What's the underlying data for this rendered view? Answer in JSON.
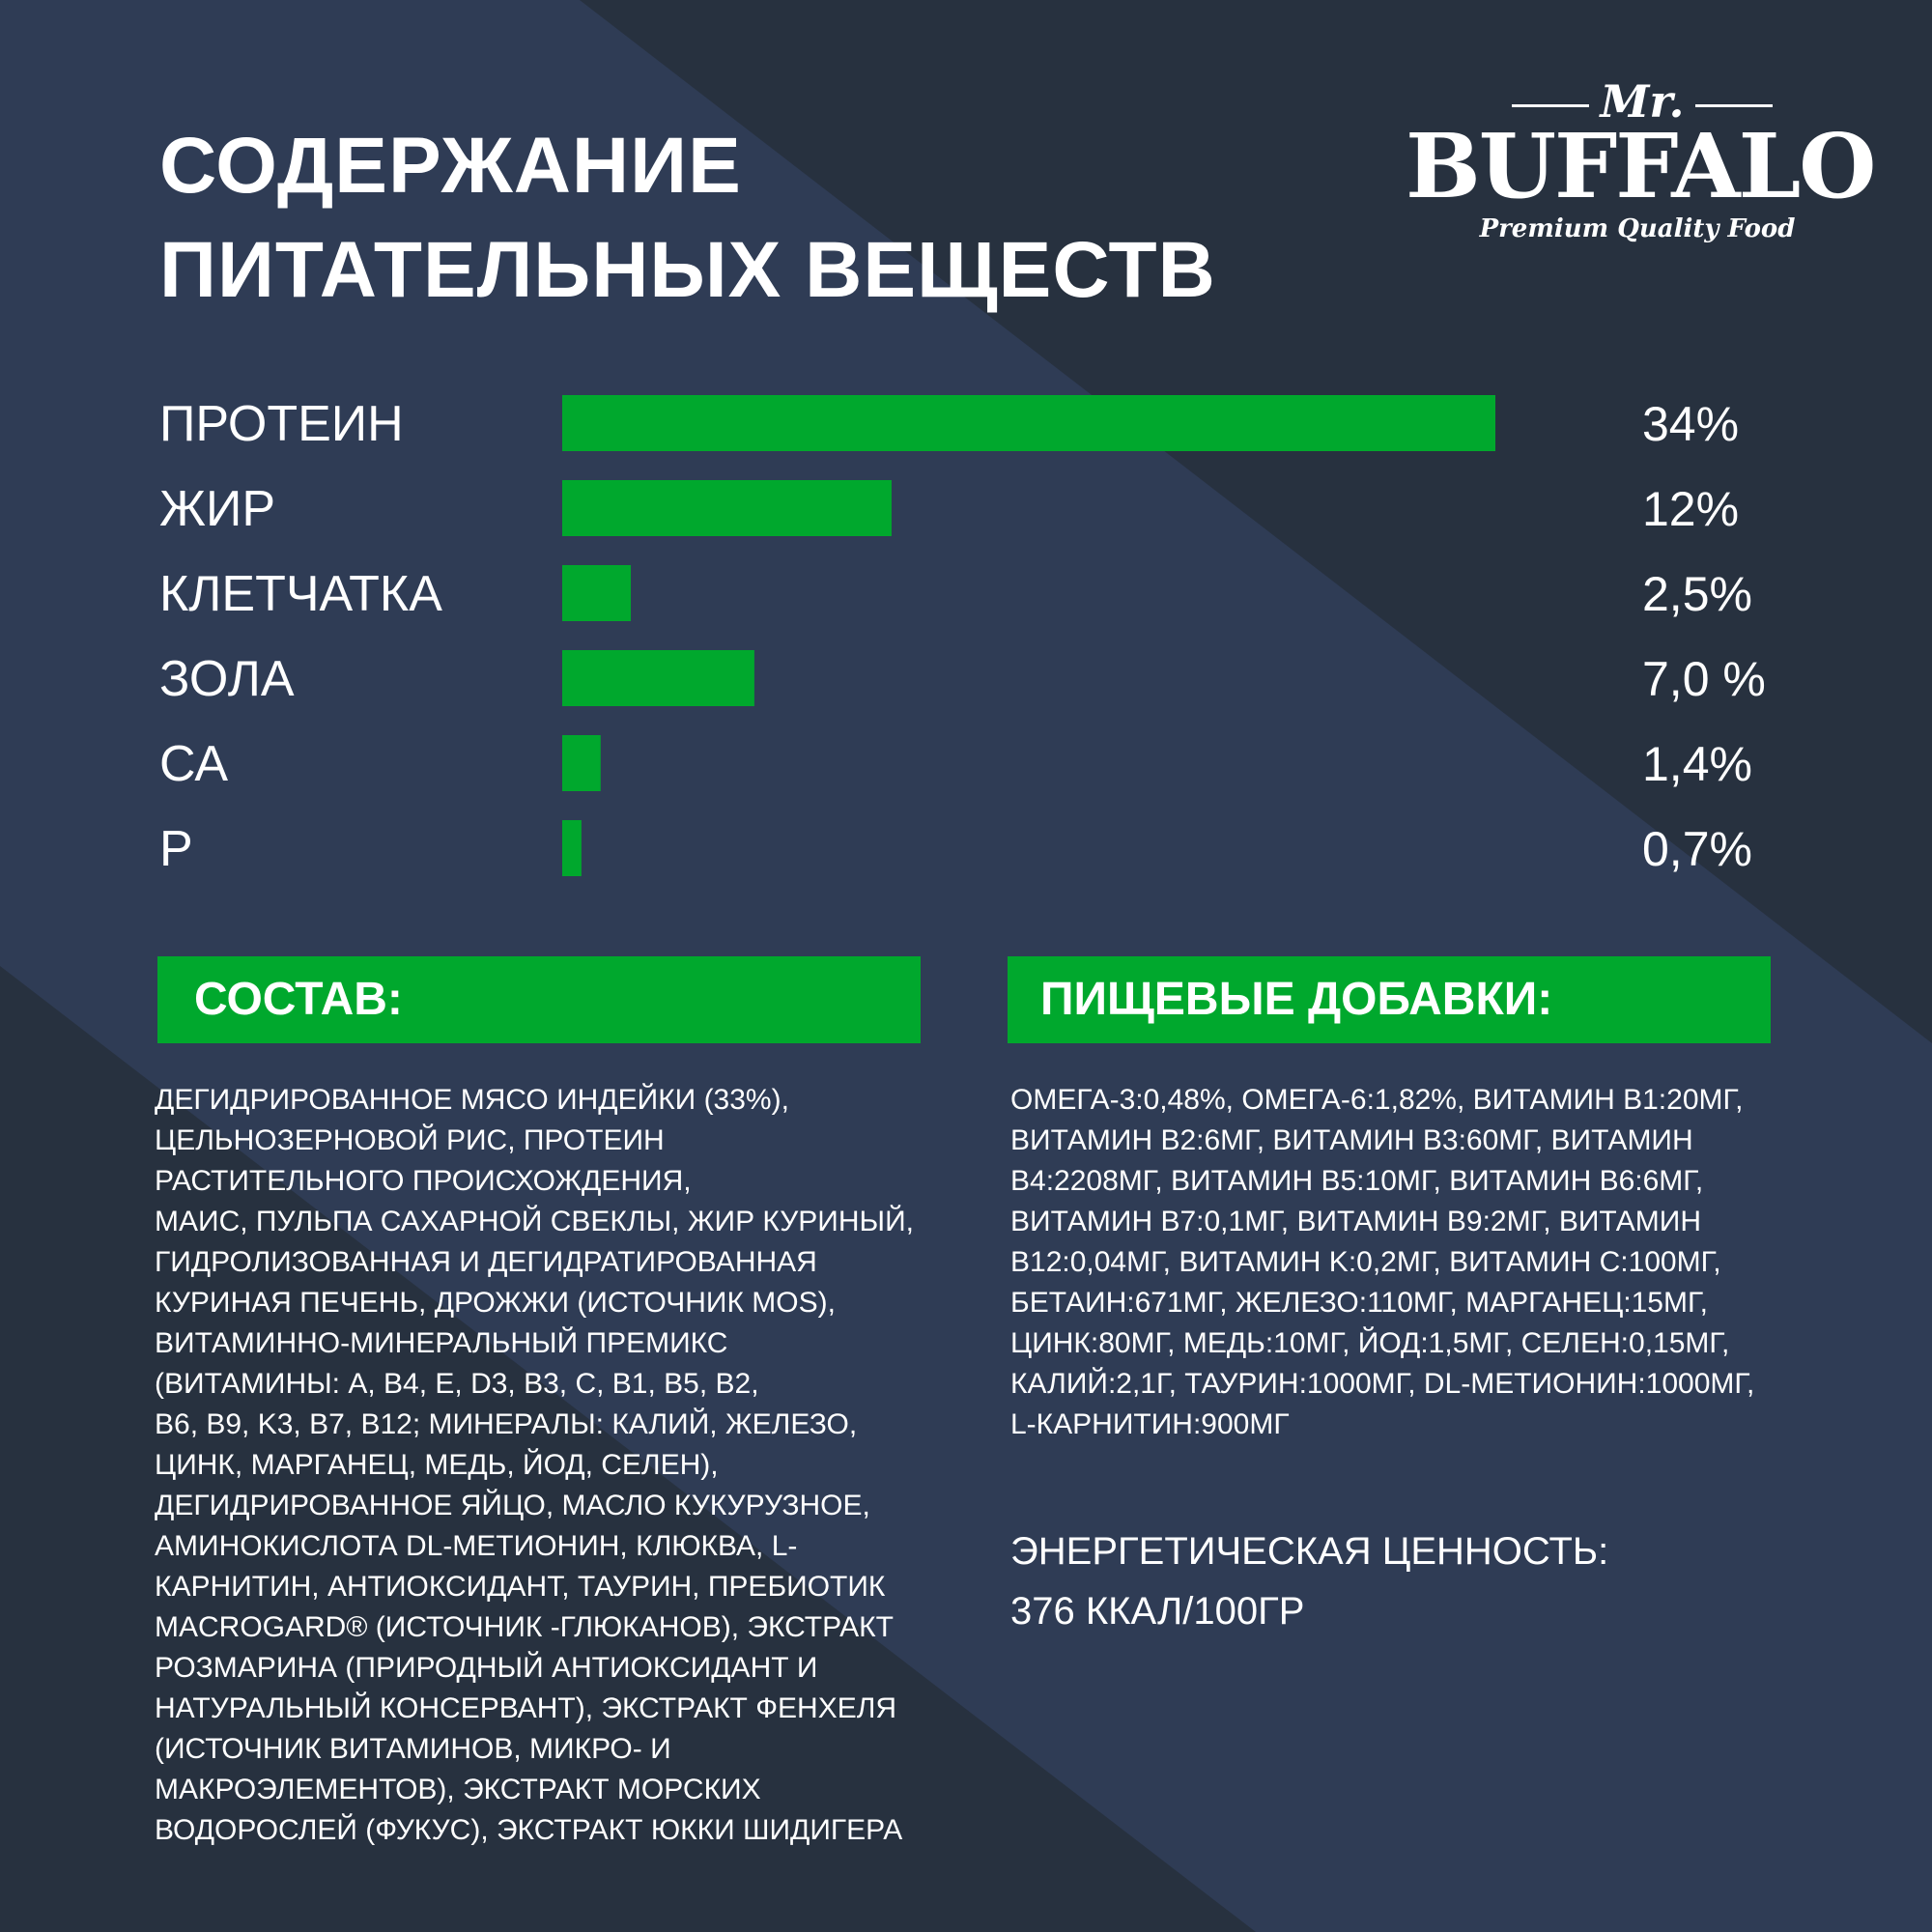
{
  "colors": {
    "background_dark": "#27313f",
    "background_light": "#2f3c55",
    "accent_green": "#00a82d",
    "text": "#ffffff"
  },
  "title": {
    "line1": "СОДЕРЖАНИЕ",
    "line2": "ПИТАТЕЛЬНЫХ ВЕЩЕСТВ"
  },
  "logo": {
    "mr": "Mr.",
    "brand": "BUFFALO",
    "tagline": "Premium Quality Food"
  },
  "chart_data": {
    "type": "bar",
    "orientation": "horizontal",
    "title": "",
    "xlabel": "",
    "ylabel": "",
    "categories": [
      "ПРОТЕИН",
      "ЖИР",
      "КЛЕТЧАТКА",
      "ЗОЛА",
      "СА",
      "Р"
    ],
    "values": [
      34,
      12,
      2.5,
      7.0,
      1.4,
      0.7
    ],
    "value_labels": [
      "34%",
      "12%",
      "2,5%",
      "7,0 %",
      "1,4%",
      "0,7%"
    ],
    "bar_color": "#00a82d",
    "grid": false,
    "legend": "none"
  },
  "composition": {
    "heading": "СОСТАВ:",
    "text": "ДЕГИДРИРОВАННОЕ МЯСО ИНДЕЙКИ (33%),\nЦЕЛЬНОЗЕРНОВОЙ РИС, ПРОТЕИН\nРАСТИТЕЛЬНОГО ПРОИСХОЖДЕНИЯ,\nМАИС, ПУЛЬПА САХАРНОЙ СВЕКЛЫ, ЖИР КУРИНЫЙ,\nГИДРОЛИЗОВАННАЯ И ДЕГИДРАТИРОВАННАЯ\nКУРИНАЯ ПЕЧЕНЬ, ДРОЖЖИ (ИСТОЧНИК MOS),\nВИТАМИННО-МИНЕРАЛЬНЫЙ ПРЕМИКС\n(ВИТАМИНЫ: A, B4, E, D3, B3, C, B1, B5, B2,\nB6, B9, K3, B7, B12; МИНЕРАЛЫ: КАЛИЙ, ЖЕЛЕЗО,\nЦИНК, МАРГАНЕЦ, МЕДЬ, ЙОД, СЕЛЕН),\nДЕГИДРИРОВАННОЕ ЯЙЦО, МАСЛО КУКУРУЗНОЕ,\nАМИНОКИСЛОТА DL-МЕТИОНИН, КЛЮКВА, L-\nКАРНИТИН, АНТИОКСИДАНТ, ТАУРИН, ПРЕБИОТИК\nMACROGARD® (ИСТОЧНИК  -ГЛЮКАНОВ), ЭКСТРАКТ\nРОЗМАРИНА (ПРИРОДНЫЙ АНТИОКСИДАНТ И\nНАТУРАЛЬНЫЙ КОНСЕРВАНТ), ЭКСТРАКТ ФЕНХЕЛЯ\n(ИСТОЧНИК ВИТАМИНОВ, МИКРО- И\nМАКРОЭЛЕМЕНТОВ), ЭКСТРАКТ МОРСКИХ\nВОДОРОСЛЕЙ (ФУКУС), ЭКСТРАКТ ЮККИ ШИДИГЕРА"
  },
  "additives": {
    "heading": "ПИЩЕВЫЕ ДОБАВКИ:",
    "text": "ОМЕГА-3:0,48%, ОМЕГА-6:1,82%, ВИТАМИН B1:20МГ,\nВИТАМИН B2:6МГ, ВИТАМИН B3:60МГ, ВИТАМИН\nB4:2208МГ, ВИТАМИН B5:10МГ, ВИТАМИН B6:6МГ,\nВИТАМИН B7:0,1МГ, ВИТАМИН B9:2МГ, ВИТАМИН\nB12:0,04МГ, ВИТАМИН K:0,2МГ, ВИТАМИН C:100МГ,\nБЕТАИН:671МГ, ЖЕЛЕЗО:110МГ, МАРГАНЕЦ:15МГ,\nЦИНК:80МГ, МЕДЬ:10МГ, ЙОД:1,5МГ, СЕЛЕН:0,15МГ,\nКАЛИЙ:2,1Г, ТАУРИН:1000МГ, DL-МЕТИОНИН:1000МГ,\nL-КАРНИТИН:900МГ"
  },
  "energy": {
    "label": "ЭНЕРГЕТИЧЕСКАЯ ЦЕННОСТЬ:",
    "value": "376 ККАЛ/100ГР"
  }
}
